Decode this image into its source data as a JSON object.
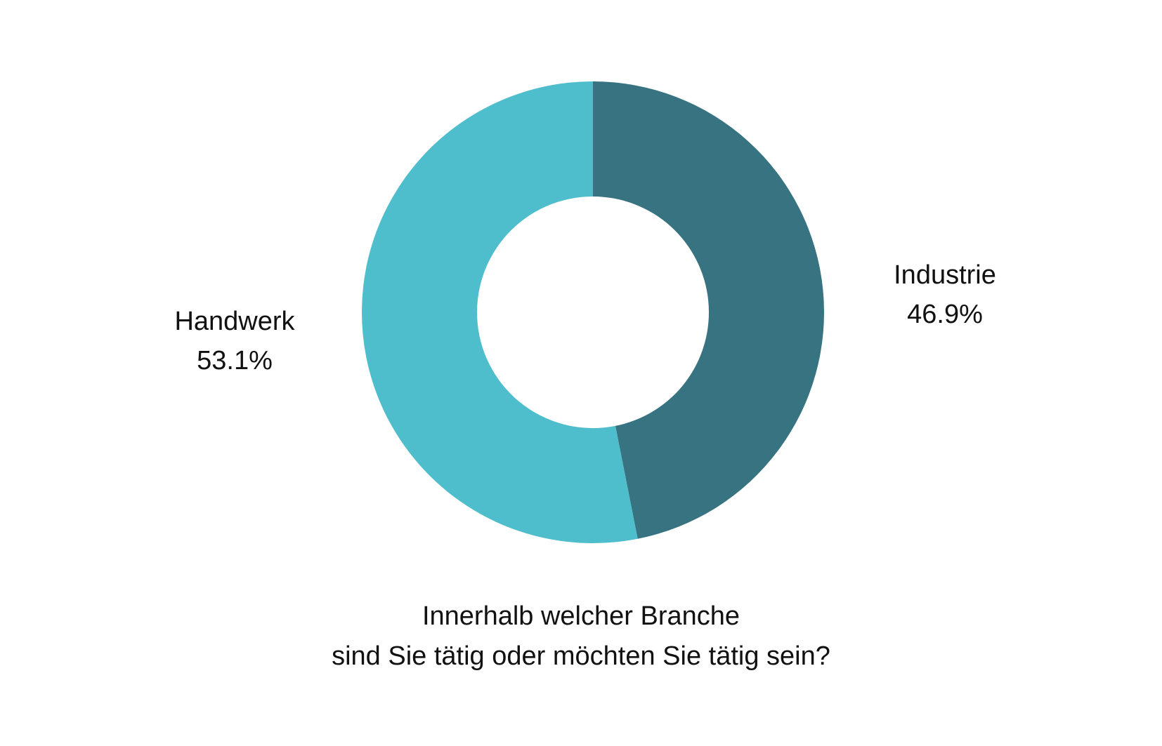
{
  "chart_data": {
    "type": "pie",
    "variant": "donut",
    "title_lines": [
      "Innerhalb welcher Branche",
      "sind Sie tätig oder möchten Sie tätig sein?"
    ],
    "slices": [
      {
        "label": "Industrie",
        "value": 46.9,
        "value_label": "46.9%",
        "color": "#377380"
      },
      {
        "label": "Handwerk",
        "value": 53.1,
        "value_label": "53.1%",
        "color": "#4FBECC"
      }
    ],
    "start_angle": "12 o'clock",
    "direction": "clockwise"
  }
}
